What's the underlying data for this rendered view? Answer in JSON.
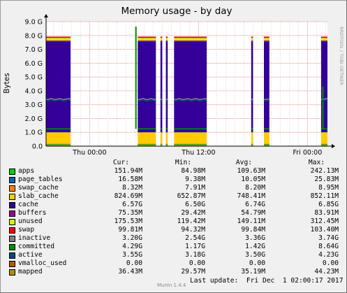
{
  "chart_data": {
    "type": "area",
    "title": "Memory usage - by day",
    "ylabel": "Bytes",
    "watermark": "RRDTOOL / TOBI OETIKER",
    "ylim": [
      0,
      9.0
    ],
    "yunit": "G",
    "yticks": [
      "0.0",
      "1.0 G",
      "2.0 G",
      "3.0 G",
      "4.0 G",
      "5.0 G",
      "6.0 G",
      "7.0 G",
      "8.0 G",
      "9.0 G"
    ],
    "xticks": [
      {
        "label": "Thu 00:00",
        "x": 4
      },
      {
        "label": "Thu 12:00",
        "x": 16
      },
      {
        "label": "Fri 00:00",
        "x": 28
      }
    ],
    "xlim": [
      -0.8,
      30.2
    ],
    "x_unit": "hours since Thu 00:00",
    "grid": true,
    "online_segments": [
      [
        -0.8,
        1.9
      ],
      [
        9.3,
        11.3
      ],
      [
        11.8,
        12.0
      ],
      [
        12.4,
        12.6
      ],
      [
        13.3,
        16.9
      ],
      [
        21.8,
        22.0
      ],
      [
        23.2,
        23.8
      ],
      [
        29.5,
        30.2
      ]
    ],
    "stack_order": [
      "apps",
      "page_tables",
      "swap_cache",
      "slab_cache",
      "cache",
      "buffers",
      "unused",
      "swap"
    ],
    "stack_values_G": {
      "apps": 0.15,
      "page_tables": 0.02,
      "swap_cache": 0.01,
      "slab_cache": 0.82,
      "cache": 6.57,
      "buffers": 0.07,
      "unused": 0.18,
      "swap": 0.1
    },
    "line_series": [
      {
        "name": "inactive",
        "approx_G": 3.4
      },
      {
        "name": "committed",
        "approx_G": 1.25,
        "spikes": [
          {
            "x": 9.1,
            "value": 8.64
          },
          {
            "x": 29.7,
            "value": 4.3
          }
        ]
      },
      {
        "name": "active",
        "approx_G": 3.3
      },
      {
        "name": "mapped",
        "approx_G": 0.04
      }
    ],
    "series": [
      {
        "name": "apps",
        "color": "#00cc00",
        "cur": "151.94M",
        "min": "84.98M",
        "avg": "109.63M",
        "max": "242.13M"
      },
      {
        "name": "page_tables",
        "color": "#0066b3",
        "cur": "16.58M",
        "min": "9.38M",
        "avg": "10.05M",
        "max": "25.83M"
      },
      {
        "name": "swap_cache",
        "color": "#ff8000",
        "cur": "8.32M",
        "min": "7.91M",
        "avg": "8.20M",
        "max": "8.95M"
      },
      {
        "name": "slab_cache",
        "color": "#ffcc00",
        "cur": "824.69M",
        "min": "652.87M",
        "avg": "748.41M",
        "max": "852.11M"
      },
      {
        "name": "cache",
        "color": "#330099",
        "cur": "6.57G",
        "min": "6.50G",
        "avg": "6.74G",
        "max": "6.85G"
      },
      {
        "name": "buffers",
        "color": "#990099",
        "cur": "75.35M",
        "min": "29.42M",
        "avg": "54.79M",
        "max": "83.91M"
      },
      {
        "name": "unused",
        "color": "#ccff00",
        "cur": "175.53M",
        "min": "119.42M",
        "avg": "149.11M",
        "max": "312.45M"
      },
      {
        "name": "swap",
        "color": "#ff0000",
        "cur": "99.81M",
        "min": "94.32M",
        "avg": "99.84M",
        "max": "103.40M"
      },
      {
        "name": "inactive",
        "color": "#808080",
        "cur": "3.20G",
        "min": "2.54G",
        "avg": "3.36G",
        "max": "3.74G"
      },
      {
        "name": "committed",
        "color": "#008f00",
        "cur": "4.29G",
        "min": "1.17G",
        "avg": "1.42G",
        "max": "8.64G"
      },
      {
        "name": "active",
        "color": "#00487d",
        "cur": "3.55G",
        "min": "3.18G",
        "avg": "3.50G",
        "max": "4.23G"
      },
      {
        "name": "vmalloc_used",
        "color": "#b35a00",
        "cur": "0.00",
        "min": "0.00",
        "avg": "0.00",
        "max": "0.00"
      },
      {
        "name": "mapped",
        "color": "#b38f00",
        "cur": "36.43M",
        "min": "29.57M",
        "avg": "35.19M",
        "max": "44.23M"
      }
    ]
  },
  "legend": {
    "col_cur": "Cur:",
    "col_min": "Min:",
    "col_avg": "Avg:",
    "col_max": "Max:"
  },
  "footer": {
    "munin": "Munin 1.4.4",
    "last_update": "Last update:  Fri Dec  1 02:00:17 2017"
  },
  "colors": {
    "background": "#f0f0f0",
    "plot_bg": "#ffffff",
    "grid_minor": "#e8c8c8",
    "grid_major": "#e09090"
  }
}
